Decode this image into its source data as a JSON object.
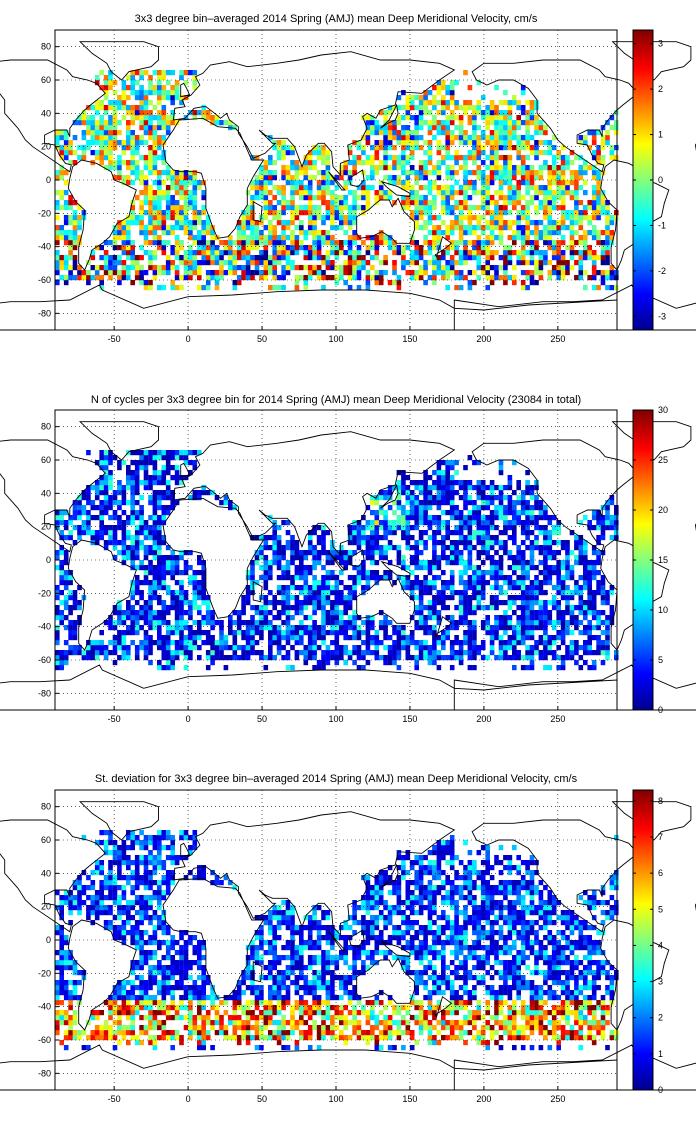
{
  "lon_axis": [
    -90,
    290
  ],
  "lat_axis": [
    -90,
    90
  ],
  "bin_size_deg": 3,
  "x_ticks": [
    -50,
    0,
    50,
    100,
    150,
    200,
    250
  ],
  "y_ticks": [
    -80,
    -60,
    -40,
    -20,
    0,
    20,
    40,
    60,
    80
  ],
  "grid": "dotted",
  "colormap": "jet",
  "colormap_stops": [
    "#00008f",
    "#0000ff",
    "#00ffff",
    "#ffff00",
    "#ff0000",
    "#800000"
  ],
  "chart_data": [
    {
      "type": "heatmap",
      "title": "3x3 degree bin–averaged 2014 Spring (AMJ) mean Deep Meridional Velocity, cm/s",
      "x_range": [
        -90,
        290
      ],
      "y_range": [
        -90,
        90
      ],
      "color_range": [
        -3.3,
        3.3
      ],
      "colorbar_ticks": [
        3,
        2,
        1,
        0,
        -1,
        -2,
        -3
      ],
      "colorbar_position": "right"
    },
    {
      "type": "heatmap",
      "title": "N of cycles per 3x3 degree bin for 2014 Spring (AMJ) mean Deep Meridional Velocity (23084 in total)",
      "x_range": [
        -90,
        290
      ],
      "y_range": [
        -90,
        90
      ],
      "color_range": [
        0,
        30
      ],
      "colorbar_ticks": [
        30,
        25,
        20,
        15,
        10,
        5,
        0
      ],
      "colorbar_position": "right"
    },
    {
      "type": "heatmap",
      "title": "St. deviation for 3x3 degree bin–averaged 2014 Spring (AMJ) mean Deep Meridional Velocity, cm/s",
      "x_range": [
        -90,
        290
      ],
      "y_range": [
        -90,
        90
      ],
      "color_range": [
        0,
        8.3
      ],
      "colorbar_ticks": [
        8,
        7,
        6,
        5,
        4,
        3,
        2,
        1,
        0
      ],
      "colorbar_position": "right"
    }
  ]
}
